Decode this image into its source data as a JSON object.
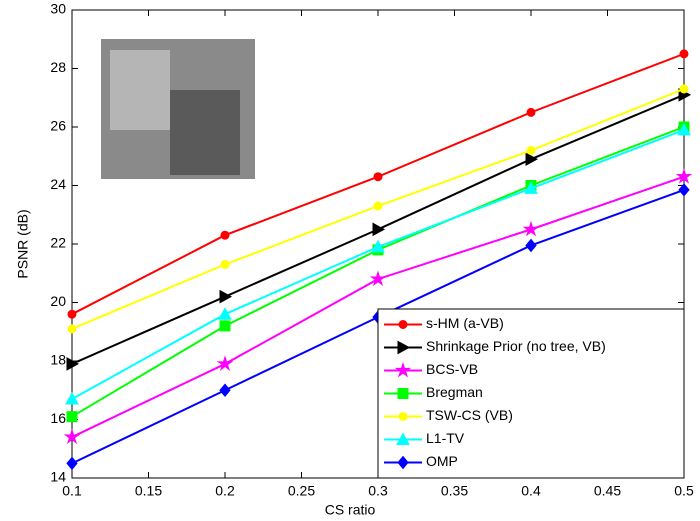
{
  "chart_data": {
    "type": "line",
    "x_label": "CS ratio",
    "y_label": "PSNR (dB)",
    "x": [
      0.1,
      0.2,
      0.3,
      0.4,
      0.5
    ],
    "xlim": [
      0.1,
      0.5
    ],
    "xticks": [
      0.1,
      0.15,
      0.2,
      0.25,
      0.3,
      0.35,
      0.4,
      0.45,
      0.5
    ],
    "ylim": [
      14,
      30
    ],
    "yticks": [
      14,
      16,
      18,
      20,
      22,
      24,
      26,
      28,
      30
    ],
    "grid": false,
    "legend": "lower right",
    "series": [
      {
        "name": "s-HM (a-VB)",
        "color": "#ff0000",
        "marker": "circle",
        "values": [
          19.6,
          22.3,
          24.3,
          26.5,
          28.5
        ]
      },
      {
        "name": "Shrinkage Prior (no tree, VB)",
        "color": "#000000",
        "marker": "triangle-right",
        "values": [
          17.9,
          20.2,
          22.5,
          24.9,
          27.1
        ]
      },
      {
        "name": "BCS-VB",
        "color": "#ff00ff",
        "marker": "star",
        "values": [
          15.4,
          17.9,
          20.8,
          22.5,
          24.3
        ]
      },
      {
        "name": "Bregman",
        "color": "#00ff00",
        "marker": "square",
        "values": [
          16.1,
          19.2,
          21.8,
          24.0,
          26.0
        ]
      },
      {
        "name": "TSW-CS (VB)",
        "color": "#ffff00",
        "marker": "circle",
        "values": [
          19.1,
          21.3,
          23.3,
          25.2,
          27.3
        ]
      },
      {
        "name": "L1-TV",
        "color": "#00ffff",
        "marker": "triangle-up",
        "values": [
          16.7,
          19.6,
          21.9,
          23.9,
          25.9
        ]
      },
      {
        "name": "OMP",
        "color": "#0000ff",
        "marker": "diamond",
        "values": [
          14.5,
          17.0,
          19.5,
          21.95,
          23.85
        ]
      }
    ]
  }
}
